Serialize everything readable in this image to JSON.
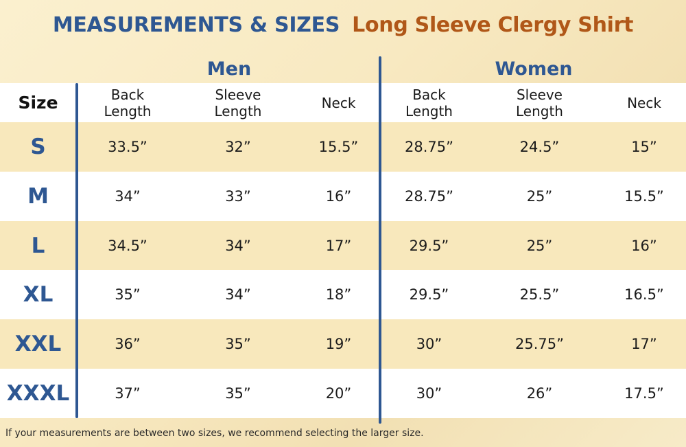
{
  "title": {
    "main": "MEASUREMENTS & SIZES",
    "product": "Long Sleeve Clergy Shirt"
  },
  "groups": {
    "men": "Men",
    "women": "Women"
  },
  "table": {
    "size_header": "Size",
    "columns": [
      [
        "Back",
        "Length"
      ],
      [
        "Sleeve",
        "Length"
      ],
      [
        "Neck"
      ],
      [
        "Back",
        "Length"
      ],
      [
        "Sleeve",
        "Length"
      ],
      [
        "Neck"
      ]
    ],
    "rows": [
      {
        "size": "S",
        "values": [
          "33.5”",
          "32”",
          "15.5”",
          "28.75”",
          "24.5”",
          "15”"
        ]
      },
      {
        "size": "M",
        "values": [
          "34”",
          "33”",
          "16”",
          "28.75”",
          "25”",
          "15.5”"
        ]
      },
      {
        "size": "L",
        "values": [
          "34.5”",
          "34”",
          "17”",
          "29.5”",
          "25”",
          "16”"
        ]
      },
      {
        "size": "XL",
        "values": [
          "35”",
          "34”",
          "18”",
          "29.5”",
          "25.5”",
          "16.5”"
        ]
      },
      {
        "size": "XXL",
        "values": [
          "36”",
          "35”",
          "19”",
          "30”",
          "25.75”",
          "17”"
        ]
      },
      {
        "size": "XXXL",
        "values": [
          "37”",
          "35”",
          "20”",
          "30”",
          "26”",
          "17.5”"
        ]
      }
    ]
  },
  "footnote": "If your measurements are between two sizes, we recommend selecting the larger size.",
  "colors": {
    "accent_blue": "#2e5792",
    "accent_orange": "#b05718",
    "row_highlight": "#f8e8bc"
  }
}
